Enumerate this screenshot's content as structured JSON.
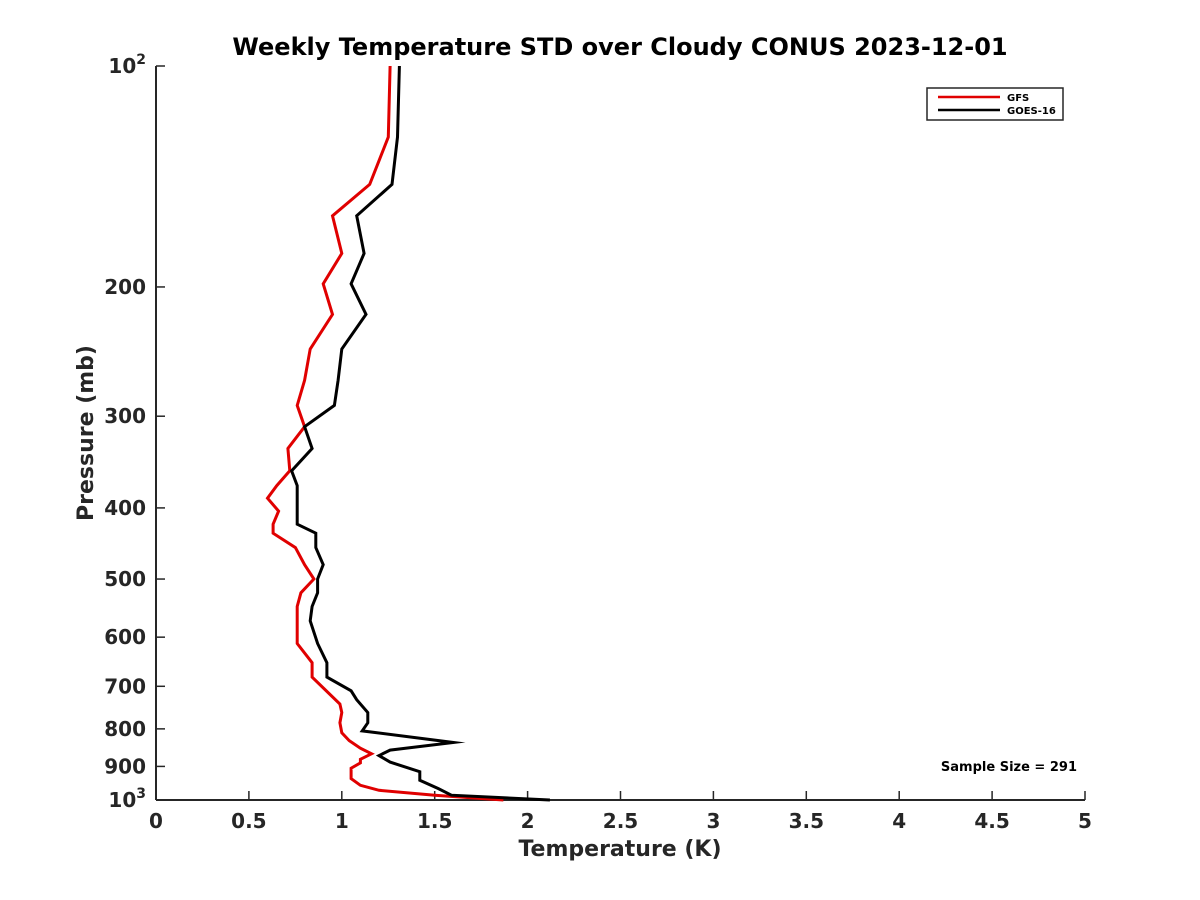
{
  "chart_data": {
    "type": "line",
    "title": "Weekly Temperature STD over Cloudy CONUS 2023-12-01",
    "xlabel": "Temperature (K)",
    "ylabel": "Pressure (mb)",
    "xlim": [
      0,
      5
    ],
    "ylim": [
      100,
      1000
    ],
    "y_scale": "log",
    "y_reversed": true,
    "grid": false,
    "legend_position": "top-right",
    "x_ticks": [
      0,
      0.5,
      1,
      1.5,
      2,
      2.5,
      3,
      3.5,
      4,
      4.5,
      5
    ],
    "x_tick_labels": [
      "0",
      "0.5",
      "1",
      "1.5",
      "2",
      "2.5",
      "3",
      "3.5",
      "4",
      "4.5",
      "5"
    ],
    "y_ticks": [
      100,
      200,
      300,
      400,
      500,
      600,
      700,
      800,
      900,
      1000
    ],
    "y_tick_labels": [
      "10^2",
      "200",
      "300",
      "400",
      "500",
      "600",
      "700",
      "800",
      "900",
      "10^3"
    ],
    "annotation": "Sample Size = 291",
    "series": [
      {
        "name": "GFS",
        "color": "#e00000",
        "x": [
          1.26,
          1.25,
          1.15,
          0.95,
          1.0,
          0.9,
          0.95,
          0.83,
          0.8,
          0.76,
          0.8,
          0.71,
          0.72,
          0.65,
          0.6,
          0.66,
          0.63,
          0.63,
          0.75,
          0.8,
          0.85,
          0.78,
          0.76,
          0.76,
          0.76,
          0.84,
          0.84,
          0.99,
          1.0,
          0.99,
          1.0,
          1.04,
          1.1,
          1.16,
          1.1,
          1.1,
          1.05,
          1.05,
          1.1,
          1.2,
          1.5,
          1.87
        ],
        "y": [
          100,
          125,
          145,
          160,
          180,
          198,
          218,
          243,
          268,
          290,
          310,
          332,
          356,
          373,
          388,
          404,
          421,
          433,
          453,
          478,
          500,
          522,
          545,
          570,
          612,
          650,
          680,
          740,
          760,
          785,
          810,
          830,
          850,
          865,
          880,
          890,
          905,
          935,
          955,
          970,
          985,
          1000
        ]
      },
      {
        "name": "GOES-16",
        "color": "#000000",
        "x": [
          1.31,
          1.3,
          1.27,
          1.08,
          1.12,
          1.05,
          1.13,
          1.0,
          0.98,
          0.96,
          0.8,
          0.84,
          0.73,
          0.76,
          0.76,
          0.76,
          0.86,
          0.86,
          0.9,
          0.87,
          0.87,
          0.84,
          0.83,
          0.87,
          0.92,
          0.92,
          1.05,
          1.08,
          1.14,
          1.14,
          1.11,
          1.6,
          1.26,
          1.2,
          1.26,
          1.42,
          1.42,
          1.52,
          1.59,
          2.12
        ],
        "y": [
          100,
          125,
          145,
          160,
          180,
          198,
          218,
          243,
          268,
          290,
          310,
          332,
          356,
          373,
          404,
          421,
          433,
          453,
          478,
          500,
          522,
          545,
          570,
          612,
          650,
          680,
          710,
          730,
          760,
          785,
          805,
          835,
          855,
          870,
          888,
          915,
          940,
          965,
          985,
          1000
        ]
      }
    ]
  }
}
